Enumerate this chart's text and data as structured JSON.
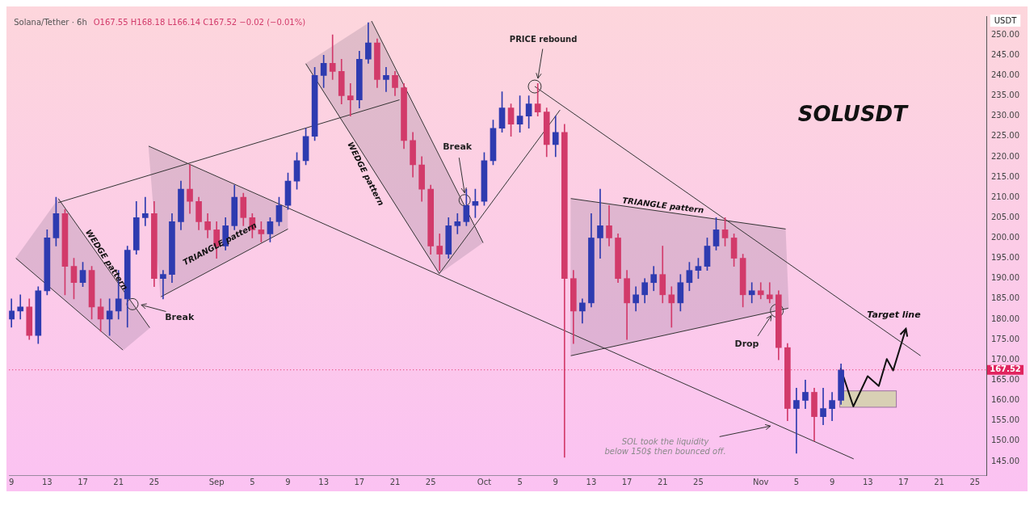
{
  "chart_data": {
    "type": "candlestick",
    "title": "Solana/Tether · 6h",
    "subtitle": "O167.55 H168.18 L166.14 C167.52 −0.02 (−0.01%)",
    "ylabel": "USDT",
    "x": [
      "--08-09",
      "--08-10",
      "--08-11",
      "--08-12",
      "--08-13",
      "--08-14",
      "--08-15",
      "--08-16",
      "--08-17",
      "--08-18",
      "--08-19",
      "--08-20",
      "--08-21",
      "--08-22",
      "--08-23",
      "--08-24",
      "--08-25",
      "--08-26",
      "--08-27",
      "--08-28",
      "--08-29",
      "--08-30",
      "--08-31",
      "--09-01",
      "--09-02",
      "--09-03",
      "--09-04",
      "--09-05",
      "--09-06",
      "--09-07",
      "--09-08",
      "--09-09",
      "--09-10",
      "--09-11",
      "--09-12",
      "--09-13",
      "--09-14",
      "--09-15",
      "--09-16",
      "--09-17",
      "--09-18",
      "--09-19",
      "--09-20",
      "--09-21",
      "--09-22",
      "--09-23",
      "--09-24",
      "--09-25",
      "--09-26",
      "--09-27",
      "--09-28",
      "--09-29",
      "--09-30",
      "--10-01",
      "--10-02",
      "--10-03",
      "--10-04",
      "--10-05",
      "--10-06",
      "--10-07",
      "--10-08",
      "--10-09",
      "--10-10",
      "--10-11",
      "--10-12",
      "--10-13",
      "--10-14",
      "--10-15",
      "--10-16",
      "--10-17",
      "--10-18",
      "--10-19",
      "--10-20",
      "--10-21",
      "--10-22",
      "--10-23",
      "--10-24",
      "--10-25",
      "--10-26",
      "--10-27",
      "--10-28",
      "--10-29",
      "--10-30",
      "--10-31",
      "--11-01",
      "--11-02",
      "--11-03",
      "--11-04",
      "--11-05",
      "--11-06",
      "--11-07",
      "--11-08",
      "--11-09",
      "--11-10"
    ],
    "ohlc": [
      [
        180,
        185,
        178,
        182
      ],
      [
        182,
        186,
        180,
        183
      ],
      [
        183,
        185,
        175,
        176
      ],
      [
        176,
        188,
        174,
        187
      ],
      [
        187,
        202,
        186,
        200
      ],
      [
        200,
        210,
        198,
        206
      ],
      [
        206,
        207,
        186,
        193
      ],
      [
        193,
        195,
        185,
        189
      ],
      [
        189,
        194,
        188,
        192
      ],
      [
        192,
        193,
        180,
        183
      ],
      [
        183,
        185,
        177,
        180
      ],
      [
        180,
        185,
        176,
        182
      ],
      [
        182,
        192,
        180,
        185
      ],
      [
        185,
        198,
        178,
        197
      ],
      [
        197,
        209,
        196,
        205
      ],
      [
        205,
        210,
        203,
        206
      ],
      [
        206,
        209,
        188,
        190
      ],
      [
        190,
        192,
        185,
        191
      ],
      [
        191,
        206,
        189,
        204
      ],
      [
        204,
        214,
        202,
        212
      ],
      [
        212,
        218,
        206,
        209
      ],
      [
        209,
        210,
        202,
        204
      ],
      [
        204,
        206,
        200,
        202
      ],
      [
        202,
        204,
        195,
        198
      ],
      [
        198,
        205,
        197,
        203
      ],
      [
        203,
        213,
        202,
        210
      ],
      [
        210,
        211,
        203,
        205
      ],
      [
        205,
        206,
        200,
        202
      ],
      [
        202,
        204,
        199,
        201
      ],
      [
        201,
        205,
        199,
        204
      ],
      [
        204,
        210,
        203,
        208
      ],
      [
        208,
        216,
        207,
        214
      ],
      [
        214,
        221,
        212,
        219
      ],
      [
        219,
        227,
        218,
        225
      ],
      [
        225,
        242,
        224,
        240
      ],
      [
        240,
        245,
        237,
        243
      ],
      [
        243,
        250,
        239,
        241
      ],
      [
        241,
        244,
        233,
        235
      ],
      [
        235,
        238,
        230,
        234
      ],
      [
        234,
        246,
        232,
        244
      ],
      [
        244,
        253,
        243,
        248
      ],
      [
        248,
        249,
        237,
        239
      ],
      [
        239,
        242,
        236,
        240
      ],
      [
        240,
        241,
        235,
        237
      ],
      [
        237,
        238,
        222,
        224
      ],
      [
        224,
        226,
        215,
        218
      ],
      [
        218,
        220,
        209,
        212
      ],
      [
        212,
        213,
        196,
        198
      ],
      [
        198,
        201,
        192,
        196
      ],
      [
        196,
        205,
        195,
        203
      ],
      [
        203,
        206,
        201,
        204
      ],
      [
        204,
        212,
        203,
        208
      ],
      [
        208,
        212,
        205,
        209
      ],
      [
        209,
        221,
        208,
        219
      ],
      [
        219,
        229,
        218,
        227
      ],
      [
        227,
        236,
        226,
        232
      ],
      [
        232,
        233,
        225,
        228
      ],
      [
        228,
        235,
        226,
        230
      ],
      [
        230,
        235,
        227,
        233
      ],
      [
        233,
        238,
        230,
        231
      ],
      [
        231,
        232,
        220,
        223
      ],
      [
        223,
        230,
        220,
        226
      ],
      [
        226,
        228,
        146,
        190
      ],
      [
        190,
        192,
        174,
        182
      ],
      [
        182,
        185,
        179,
        184
      ],
      [
        184,
        206,
        183,
        200
      ],
      [
        200,
        212,
        195,
        203
      ],
      [
        203,
        208,
        198,
        200
      ],
      [
        200,
        201,
        189,
        190
      ],
      [
        190,
        192,
        175,
        184
      ],
      [
        184,
        188,
        182,
        186
      ],
      [
        186,
        190,
        184,
        189
      ],
      [
        189,
        193,
        187,
        191
      ],
      [
        191,
        198,
        184,
        186
      ],
      [
        186,
        188,
        178,
        184
      ],
      [
        184,
        191,
        182,
        189
      ],
      [
        189,
        194,
        187,
        192
      ],
      [
        192,
        195,
        190,
        193
      ],
      [
        193,
        200,
        192,
        198
      ],
      [
        198,
        205,
        197,
        202
      ],
      [
        202,
        205,
        198,
        200
      ],
      [
        200,
        201,
        193,
        195
      ],
      [
        195,
        196,
        183,
        186
      ],
      [
        186,
        189,
        184,
        187
      ],
      [
        187,
        189,
        185,
        186
      ],
      [
        186,
        189,
        184,
        185
      ],
      [
        186,
        187,
        170,
        173
      ],
      [
        173,
        174,
        155,
        158
      ],
      [
        158,
        163,
        147,
        160
      ],
      [
        160,
        165,
        158,
        162
      ],
      [
        162,
        163,
        150,
        156
      ],
      [
        156,
        163,
        154,
        158
      ],
      [
        158,
        162,
        155,
        160
      ],
      [
        160,
        169,
        159,
        167.52
      ]
    ],
    "colors": [
      "#2e3bb0",
      "#2e3bb0",
      "#d23a6a",
      "#2e3bb0",
      "#2e3bb0",
      "#2e3bb0",
      "#d23a6a",
      "#d23a6a",
      "#2e3bb0",
      "#d23a6a",
      "#d23a6a",
      "#2e3bb0",
      "#2e3bb0",
      "#2e3bb0",
      "#2e3bb0",
      "#2e3bb0",
      "#d23a6a",
      "#2e3bb0",
      "#2e3bb0",
      "#2e3bb0",
      "#d23a6a",
      "#d23a6a",
      "#d23a6a",
      "#d23a6a",
      "#2e3bb0",
      "#2e3bb0",
      "#d23a6a",
      "#d23a6a",
      "#d23a6a",
      "#2e3bb0",
      "#2e3bb0",
      "#2e3bb0",
      "#2e3bb0",
      "#2e3bb0",
      "#2e3bb0",
      "#2e3bb0",
      "#d23a6a",
      "#d23a6a",
      "#d23a6a",
      "#2e3bb0",
      "#2e3bb0",
      "#d23a6a",
      "#2e3bb0",
      "#d23a6a",
      "#d23a6a",
      "#d23a6a",
      "#d23a6a",
      "#d23a6a",
      "#d23a6a",
      "#2e3bb0",
      "#2e3bb0",
      "#2e3bb0",
      "#2e3bb0",
      "#2e3bb0",
      "#2e3bb0",
      "#2e3bb0",
      "#d23a6a",
      "#2e3bb0",
      "#2e3bb0",
      "#d23a6a",
      "#d23a6a",
      "#2e3bb0",
      "#d23a6a",
      "#d23a6a",
      "#2e3bb0",
      "#2e3bb0",
      "#2e3bb0",
      "#d23a6a",
      "#d23a6a",
      "#d23a6a",
      "#2e3bb0",
      "#2e3bb0",
      "#2e3bb0",
      "#d23a6a",
      "#d23a6a",
      "#2e3bb0",
      "#2e3bb0",
      "#2e3bb0",
      "#2e3bb0",
      "#2e3bb0",
      "#d23a6a",
      "#d23a6a",
      "#d23a6a",
      "#2e3bb0",
      "#d23a6a",
      "#d23a6a",
      "#d23a6a",
      "#d23a6a",
      "#2e3bb0",
      "#2e3bb0",
      "#d23a6a",
      "#2e3bb0",
      "#2e3bb0",
      "#2e3bb0"
    ],
    "series": [
      {
        "type": "line",
        "x": [
          "--08-14T06:00",
          "--08-24T12:00"
        ],
        "values": [
          209.7,
          177.9
        ],
        "color": "#333333"
      },
      {
        "type": "line",
        "x": [
          "--08-09T12:00",
          "--08-21T12:00"
        ],
        "values": [
          195.0,
          172.4
        ],
        "color": "#333333"
      },
      {
        "type": "line",
        "x": [
          "--08-14T06:00",
          "--09-21T12:00"
        ],
        "values": [
          208.7,
          234.0
        ],
        "color": "#333333"
      },
      {
        "type": "line",
        "x": [
          "--08-24T09:00",
          "--11-11T10:00"
        ],
        "values": [
          222.6,
          145.6
        ],
        "color": "#333333"
      },
      {
        "type": "line",
        "x": [
          "--08-25T18:00",
          "--09-09T00:00"
        ],
        "values": [
          185.5,
          202.2
        ],
        "color": "#333333"
      },
      {
        "type": "line",
        "x": [
          "--09-11T00:00",
          "--09-25T23:00"
        ],
        "values": [
          242.9,
          191.2
        ],
        "color": "#333333"
      },
      {
        "type": "line",
        "x": [
          "--09-18T09:00",
          "--09-30T21:00"
        ],
        "values": [
          253.4,
          198.8
        ],
        "color": "#333333"
      },
      {
        "type": "line",
        "x": [
          "--09-25T23:00",
          "--10-09T12:00"
        ],
        "values": [
          191.2,
          231.5
        ],
        "color": "#333333"
      },
      {
        "type": "line",
        "x": [
          "--10-06T16:00",
          "--11-18T22:00"
        ],
        "values": [
          237.3,
          171.0
        ],
        "color": "#333333"
      },
      {
        "type": "line",
        "x": [
          "--10-10T17:00",
          "--11-03T19:00"
        ],
        "values": [
          209.7,
          202.2
        ],
        "color": "#333333"
      },
      {
        "type": "line",
        "x": [
          "--10-10T17:00",
          "--11-04T02:00"
        ],
        "values": [
          171.0,
          182.7
        ],
        "color": "#333333"
      }
    ],
    "xlim": [
      "--08-08T17:30",
      "--11-26T07:00"
    ],
    "xticks": [
      {
        "value": "--08-09",
        "label": "9"
      },
      {
        "value": "--08-13",
        "label": "13"
      },
      {
        "value": "--08-17",
        "label": "17"
      },
      {
        "value": "--08-21",
        "label": "21"
      },
      {
        "value": "--08-25",
        "label": "25"
      },
      {
        "value": "--09-01",
        "label": "Sep"
      },
      {
        "value": "--09-05",
        "label": "5"
      },
      {
        "value": "--09-09",
        "label": "9"
      },
      {
        "value": "--09-13",
        "label": "13"
      },
      {
        "value": "--09-17",
        "label": "17"
      },
      {
        "value": "--09-21",
        "label": "21"
      },
      {
        "value": "--09-25",
        "label": "25"
      },
      {
        "value": "--10-01",
        "label": "Oct"
      },
      {
        "value": "--10-05",
        "label": "5"
      },
      {
        "value": "--10-09",
        "label": "9"
      },
      {
        "value": "--10-13",
        "label": "13"
      },
      {
        "value": "--10-17",
        "label": "17"
      },
      {
        "value": "--10-21",
        "label": "21"
      },
      {
        "value": "--10-25",
        "label": "25"
      },
      {
        "value": "--11-01",
        "label": "Nov"
      },
      {
        "value": "--11-05",
        "label": "5"
      },
      {
        "value": "--11-09",
        "label": "9"
      },
      {
        "value": "--11-13",
        "label": "13"
      },
      {
        "value": "--11-17",
        "label": "17"
      },
      {
        "value": "--11-21",
        "label": "21"
      },
      {
        "value": "--11-25",
        "label": "25"
      }
    ],
    "ylim": [
      141.6,
      254.6
    ],
    "yticks": [
      {
        "value": 145,
        "label": "145.00"
      },
      {
        "value": 150,
        "label": "150.00"
      },
      {
        "value": 155,
        "label": "155.00"
      },
      {
        "value": 160,
        "label": "160.00"
      },
      {
        "value": 165,
        "label": "165.00"
      },
      {
        "value": 170,
        "label": "170.00"
      },
      {
        "value": 175,
        "label": "175.00"
      },
      {
        "value": 180,
        "label": "180.00"
      },
      {
        "value": 185,
        "label": "185.00"
      },
      {
        "value": 190,
        "label": "190.00"
      },
      {
        "value": 195,
        "label": "195.00"
      },
      {
        "value": 200,
        "label": "200.00"
      },
      {
        "value": 205,
        "label": "205.00"
      },
      {
        "value": 210,
        "label": "210.00"
      },
      {
        "value": 215,
        "label": "215.00"
      },
      {
        "value": 220,
        "label": "220.00"
      },
      {
        "value": 225,
        "label": "225.00"
      },
      {
        "value": 230,
        "label": "230.00"
      },
      {
        "value": 235,
        "label": "235.00"
      },
      {
        "value": 240,
        "label": "240.00"
      },
      {
        "value": 245,
        "label": "245.00"
      },
      {
        "value": 250,
        "label": "250.00"
      }
    ],
    "ref_lines": [
      {
        "axis": "y",
        "value": 167.52,
        "label": "167.52",
        "color": "#e0245e",
        "line_style": "dotted"
      }
    ],
    "annotations": [
      "WEDGE pattern",
      "Break",
      "TRIANGLE pattern",
      "WEDGE pattern",
      {
        "text": "Break",
        "x": "--09-28T19:00",
        "y": 211.1
      },
      {
        "text": "PRICE rebound",
        "x": "--10-07T00:00",
        "y": 239.3
      },
      "TRIANGLE pattern",
      {
        "text": "Drop",
        "x": "--11-02T05:00",
        "y": 180.9
      },
      {
        "text": "Target line",
        "x": "--11-15T22:00",
        "y": 175.5
      },
      {
        "text": "SOL took the liquidity\nbelow 150$ then bounced off.",
        "x": "--11-02T02:00",
        "y": 153.7
      },
      "SOLUSDT"
    ]
  }
}
